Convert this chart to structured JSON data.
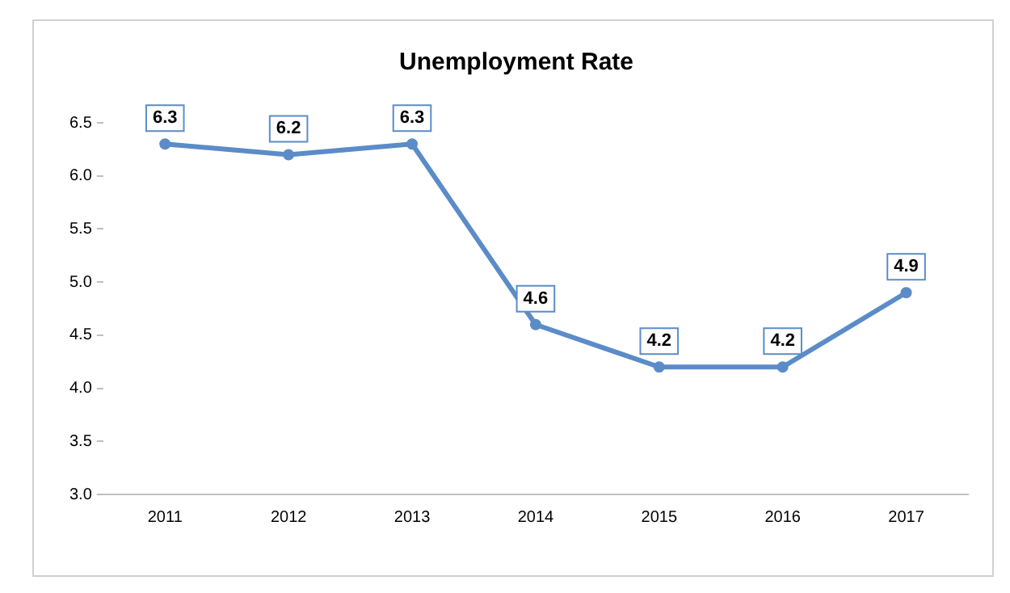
{
  "chart_data": {
    "type": "line",
    "title": "Unemployment Rate",
    "categories": [
      "2011",
      "2012",
      "2013",
      "2014",
      "2015",
      "2016",
      "2017"
    ],
    "values": [
      6.3,
      6.2,
      6.3,
      4.6,
      4.2,
      4.2,
      4.9
    ],
    "color": "#5b8cc8",
    "ylim": [
      3,
      6.5
    ],
    "yticks": [
      {
        "value": 3,
        "label": "3.0"
      },
      {
        "value": 3.5,
        "label": "3.5"
      },
      {
        "value": 4,
        "label": "4.0"
      },
      {
        "value": 4.5,
        "label": "4.5"
      },
      {
        "value": 5,
        "label": "5.0"
      },
      {
        "value": 5.5,
        "label": "5.5"
      },
      {
        "value": 6,
        "label": "6.0"
      },
      {
        "value": 6.5,
        "label": "6.5"
      }
    ],
    "grid": false,
    "legend": false,
    "marker": "circle",
    "line_style": "solid",
    "data_labels": true
  }
}
